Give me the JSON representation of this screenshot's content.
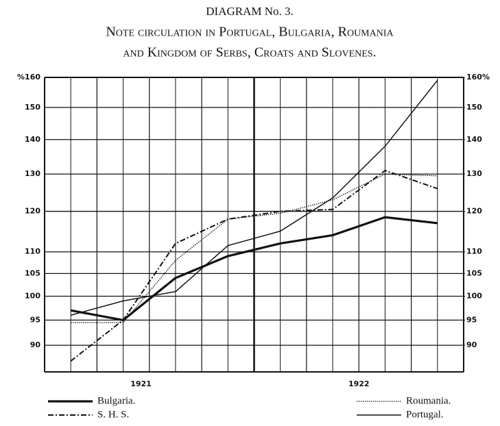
{
  "chart_data": {
    "type": "line",
    "title": "DIAGRAM No. 3.",
    "subtitle": [
      "Note circulation in Portugal, Bulgaria, Roumania",
      "and Kingdom of Serbs, Croats and Slovenes."
    ],
    "categories": [
      null,
      null,
      null,
      null,
      null,
      null,
      null,
      null
    ],
    "x_axis_labels": [
      "1921",
      "1922"
    ],
    "series": [
      {
        "name": "Bulgaria.",
        "color": "#111111",
        "dash": "solid-thick",
        "values": [
          97,
          95,
          104,
          109,
          112,
          114,
          118.5,
          117
        ]
      },
      {
        "name": "S. H. S.",
        "color": "#111111",
        "dash": "dash-dot",
        "values": [
          87,
          95,
          112,
          118,
          120,
          120.5,
          131,
          126
        ]
      },
      {
        "name": "Roumania.",
        "color": "#111111",
        "dash": "dotted",
        "values": [
          94.5,
          94.5,
          108,
          118,
          119.5,
          123,
          130,
          129.5
        ]
      },
      {
        "name": "Portugal.",
        "color": "#111111",
        "dash": "solid-thin",
        "values": [
          96,
          99,
          101,
          111.5,
          115,
          123.5,
          138,
          159
        ]
      }
    ],
    "log_scale": true,
    "ylim": [
      85,
      160
    ],
    "yticks": [
      90,
      95,
      100,
      105,
      110,
      120,
      130,
      140,
      150,
      {
        "value": 160,
        "label": "%160"
      }
    ],
    "y2lim": [
      85,
      160
    ],
    "y2ticks": [
      90,
      95,
      100,
      105,
      110,
      120,
      130,
      140,
      150,
      {
        "value": 160,
        "label": "160%"
      }
    ],
    "grid": true
  }
}
